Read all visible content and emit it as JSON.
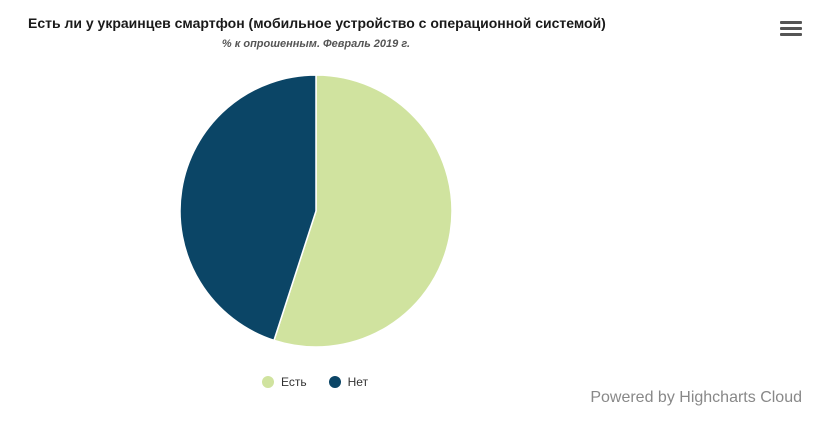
{
  "chart_data": {
    "type": "pie",
    "title": "Есть ли у украинцев смартфон (мобильное устройство с операционной системой)",
    "subtitle": "% к опрошенным. Февраль 2019 г.",
    "slices": [
      {
        "name": "Есть",
        "value": 55,
        "color": "#d0e39f"
      },
      {
        "name": "Нет",
        "value": 45,
        "color": "#0b4566"
      }
    ],
    "legend_position": "bottom-center"
  },
  "credits": "Powered by Highcharts Cloud",
  "icons": {
    "menu": "hamburger-menu-icon"
  }
}
